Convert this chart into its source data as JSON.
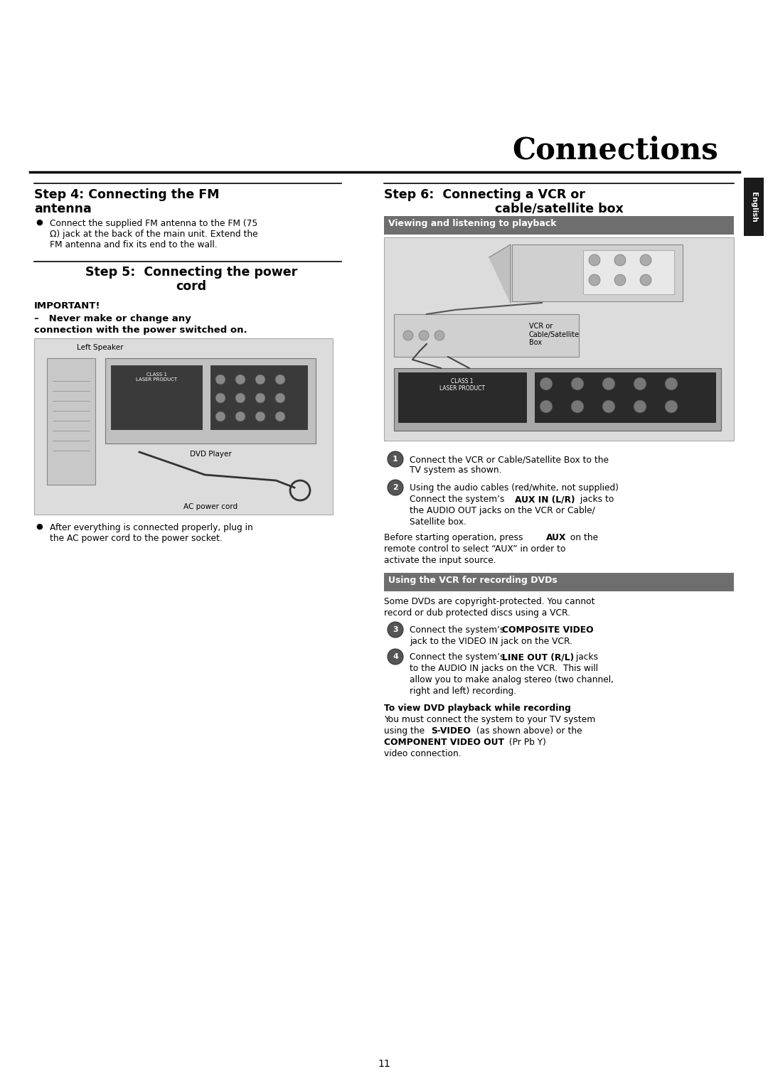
{
  "page_title": "Connections",
  "page_number": "11",
  "bg_color": "#ffffff",
  "title_color": "#000000",
  "english_tab_color": "#1a1a1a",
  "english_tab_text": "English",
  "gray_header_color": "#6e6e6e",
  "light_gray_bg": "#dcdcdc",
  "step4_title1": "Step 4: Connecting the FM",
  "step4_title2": "antenna",
  "step4_bullet": "Connect the supplied FM antenna to the FM (75\nΩ) jack at the back of the main unit. Extend the\nFM antenna and fix its end to the wall.",
  "step5_title1": "Step 5:  Connecting the power",
  "step5_title2": "cord",
  "step5_important": "IMPORTANT!",
  "step5_dash": "–   Never make or change any",
  "step5_dash2": "connection with the power switched on.",
  "step5_label_speaker": "Left Speaker",
  "step5_label_dvd": "DVD Player",
  "step5_label_ac": "AC power cord",
  "step5_bullet": "After everything is connected properly, plug in\nthe AC power cord to the power socket.",
  "step6_title1": "Step 6:  Connecting a VCR or",
  "step6_title2": "cable/satellite box",
  "step6_hdr1": "Viewing and listening to playback",
  "step6_item1": "Connect the VCR or Cable/Satellite Box to the\nTV system as shown.",
  "step6_item2a": "Using the audio cables (red/white, not supplied)",
  "step6_item2b": "Connect the system’s ",
  "step6_item2bold": "AUX IN (L/R)",
  "step6_item2c": " jacks to",
  "step6_item2d": "the AUDIO OUT jacks on the VCR or Cable/",
  "step6_item2e": "Satellite box.",
  "step6_aux1": "Before starting operation, press ",
  "step6_auxbold": "AUX",
  "step6_aux2": " on the",
  "step6_aux3": "remote control to select “AUX” in order to",
  "step6_aux4": "activate the input source.",
  "step6_hdr2": "Using the VCR for recording DVDs",
  "step6_dvd1": "Some DVDs are copyright-protected. You cannot",
  "step6_dvd2": "record or dub protected discs using a VCR.",
  "step6_item3a": "Connect the system’s ",
  "step6_item3bold": "COMPOSITE VIDEO",
  "step6_item3b": "jack to the VIDEO IN jack on the VCR.",
  "step6_item4a": "Connect the system’s ",
  "step6_item4bold": "LINE OUT (R/L)",
  "step6_item4b": " jacks",
  "step6_item4c": "to the AUDIO IN jacks on the VCR.  This will",
  "step6_item4d": "allow you to make analog stereo (two channel,",
  "step6_item4e": "right and left) recording.",
  "step6_view_title": "To view DVD playback while recording",
  "step6_view1": "You must connect the system to your TV system",
  "step6_view2": "using the ",
  "step6_view2bold": "S-VIDEO",
  "step6_view2c": " (as shown above) or the",
  "step6_view3bold": "COMPONENT VIDEO OUT",
  "step6_view3c": " (Pr Pb Y)",
  "step6_view4": "video connection."
}
